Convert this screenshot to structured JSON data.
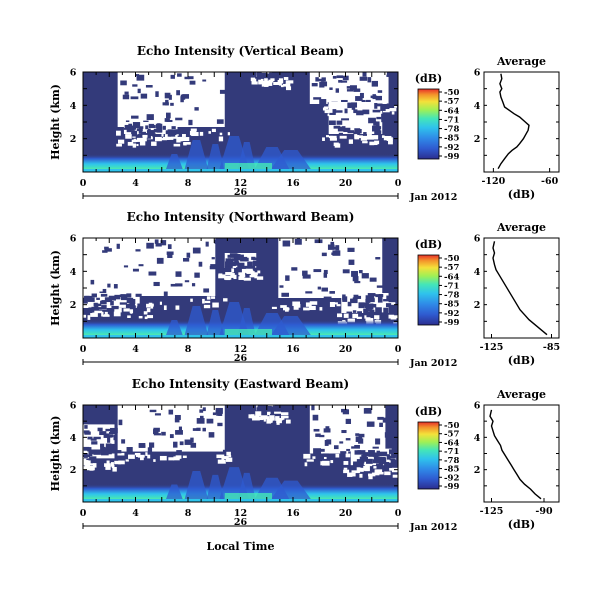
{
  "chart_data": [
    {
      "type": "heatmap",
      "title": "Echo Intensity (Vertical Beam)",
      "ylabel": "Height (km)",
      "ylim": [
        0,
        6
      ],
      "yticks": [
        "6",
        "4",
        "2"
      ],
      "xticks": [
        "0",
        "4",
        "8",
        "12",
        "16",
        "20",
        "0"
      ],
      "xlim_hours": [
        0,
        24
      ],
      "date_axis": {
        "day": "26",
        "month": "Jan 2012"
      },
      "colorbar": {
        "unit": "(dB)",
        "levels": [
          "-50",
          "-57",
          "-64",
          "-71",
          "-78",
          "-85",
          "-92",
          "-99"
        ]
      },
      "average": {
        "title": "Average",
        "xlabel": "(dB)",
        "xticks": [
          "-120",
          "-60"
        ],
        "xlim": [
          -130,
          -50
        ],
        "profile": [
          [
            -115,
            0.2
          ],
          [
            -112,
            0.5
          ],
          [
            -108,
            0.8
          ],
          [
            -104,
            1.1
          ],
          [
            -100,
            1.3
          ],
          [
            -95,
            1.5
          ],
          [
            -92,
            1.7
          ],
          [
            -88,
            2.0
          ],
          [
            -85,
            2.3
          ],
          [
            -83,
            2.5
          ],
          [
            -82,
            2.8
          ],
          [
            -86,
            3.0
          ],
          [
            -92,
            3.3
          ],
          [
            -98,
            3.5
          ],
          [
            -103,
            3.7
          ],
          [
            -108,
            3.9
          ],
          [
            -110,
            4.2
          ],
          [
            -112,
            4.5
          ],
          [
            -113,
            4.8
          ],
          [
            -111,
            5.0
          ],
          [
            -113,
            5.3
          ],
          [
            -111,
            5.6
          ],
          [
            -112,
            5.9
          ]
        ]
      }
    },
    {
      "type": "heatmap",
      "title": "Echo Intensity (Northward Beam)",
      "ylabel": "Height (km)",
      "ylim": [
        0,
        6
      ],
      "yticks": [
        "6",
        "4",
        "2"
      ],
      "xticks": [
        "0",
        "4",
        "8",
        "12",
        "16",
        "20",
        "0"
      ],
      "xlim_hours": [
        0,
        24
      ],
      "date_axis": {
        "day": "26",
        "month": "Jan 2012"
      },
      "colorbar": {
        "unit": "(dB)",
        "levels": [
          "-50",
          "-57",
          "-64",
          "-71",
          "-78",
          "-85",
          "-92",
          "-99"
        ]
      },
      "average": {
        "title": "Average",
        "xlabel": "(dB)",
        "xticks": [
          "-125",
          "-85"
        ],
        "xlim": [
          -130,
          -80
        ],
        "profile": [
          [
            -88,
            0.2
          ],
          [
            -92,
            0.5
          ],
          [
            -96,
            0.8
          ],
          [
            -100,
            1.1
          ],
          [
            -103,
            1.4
          ],
          [
            -106,
            1.7
          ],
          [
            -108,
            2.0
          ],
          [
            -110,
            2.3
          ],
          [
            -112,
            2.6
          ],
          [
            -114,
            2.9
          ],
          [
            -116,
            3.2
          ],
          [
            -118,
            3.5
          ],
          [
            -120,
            3.8
          ],
          [
            -122,
            4.1
          ],
          [
            -123,
            4.4
          ],
          [
            -124,
            4.8
          ],
          [
            -123,
            5.1
          ],
          [
            -124,
            5.4
          ],
          [
            -123,
            5.8
          ]
        ]
      }
    },
    {
      "type": "heatmap",
      "title": "Echo Intensity (Eastward Beam)",
      "ylabel": "Height (km)",
      "ylim": [
        0,
        6
      ],
      "yticks": [
        "6",
        "4",
        "2"
      ],
      "xticks": [
        "0",
        "4",
        "8",
        "12",
        "16",
        "20",
        "0"
      ],
      "xlim_hours": [
        0,
        24
      ],
      "xlabel": "Local Time",
      "date_axis": {
        "day": "26",
        "month": "Jan 2012"
      },
      "colorbar": {
        "unit": "(dB)",
        "levels": [
          "-50",
          "-57",
          "-64",
          "-71",
          "-78",
          "-85",
          "-92",
          "-99"
        ]
      },
      "average": {
        "title": "Average",
        "xlabel": "(dB)",
        "xticks": [
          "-125",
          "-90"
        ],
        "xlim": [
          -130,
          -80
        ],
        "profile": [
          [
            -92,
            0.2
          ],
          [
            -96,
            0.5
          ],
          [
            -99,
            0.8
          ],
          [
            -103,
            1.1
          ],
          [
            -106,
            1.4
          ],
          [
            -108,
            1.7
          ],
          [
            -110,
            2.0
          ],
          [
            -112,
            2.3
          ],
          [
            -114,
            2.6
          ],
          [
            -116,
            2.9
          ],
          [
            -118,
            3.2
          ],
          [
            -119,
            3.5
          ],
          [
            -121,
            3.8
          ],
          [
            -123,
            4.1
          ],
          [
            -124,
            4.4
          ],
          [
            -125,
            4.7
          ],
          [
            -124,
            5.0
          ],
          [
            -126,
            5.3
          ],
          [
            -125,
            5.7
          ]
        ]
      }
    }
  ],
  "colors": {
    "background_echo": "#333a7a",
    "colormap": [
      "#2b2e8f",
      "#2f5bd0",
      "#2f8be8",
      "#2fc3ec",
      "#44e6b8",
      "#9ff056",
      "#f4e13a",
      "#f3932b",
      "#e8302a"
    ]
  }
}
